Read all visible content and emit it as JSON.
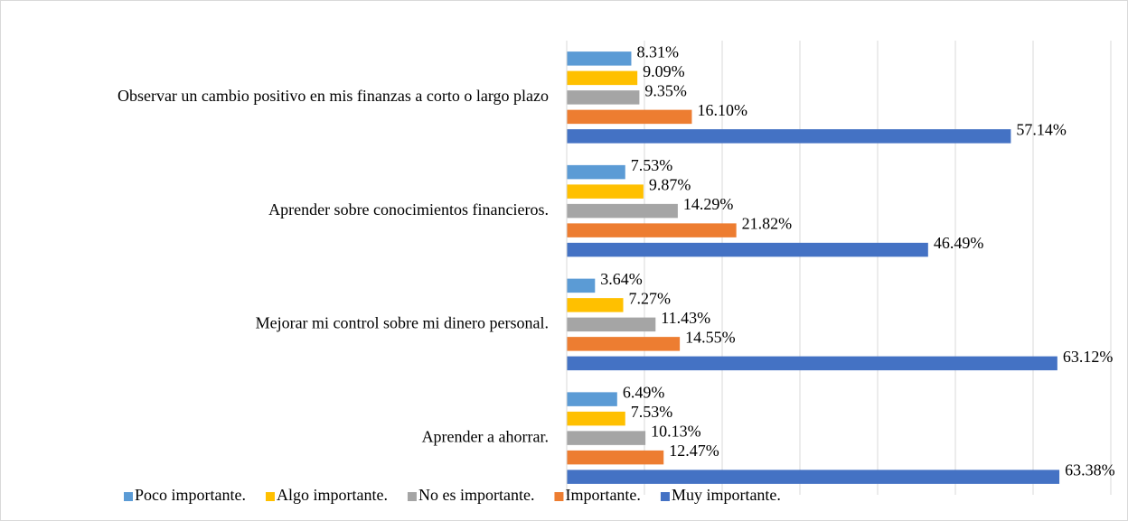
{
  "chart_data": {
    "type": "bar",
    "orientation": "horizontal",
    "categories": [
      "Observar un cambio positivo en mis finanzas a corto o largo plazo",
      "Aprender sobre conocimientos financieros.",
      "Mejorar mi control sobre mi dinero personal.",
      "Aprender a ahorrar."
    ],
    "series": [
      {
        "name": "Poco importante.",
        "color": "#5b9bd5",
        "values": [
          8.31,
          7.53,
          3.64,
          6.49
        ],
        "value_labels": [
          "8.31%",
          "7.53%",
          "3.64%",
          "6.49%"
        ]
      },
      {
        "name": "Algo importante.",
        "color": "#ffc000",
        "values": [
          9.09,
          9.87,
          7.27,
          7.53
        ],
        "value_labels": [
          "9.09%",
          "9.87%",
          "7.27%",
          "7.53%"
        ]
      },
      {
        "name": "No es importante.",
        "color": "#a5a5a5",
        "values": [
          9.35,
          14.29,
          11.43,
          10.13
        ],
        "value_labels": [
          "9.35%",
          "14.29%",
          "11.43%",
          "10.13%"
        ]
      },
      {
        "name": "Importante.",
        "color": "#ed7d31",
        "values": [
          16.1,
          21.82,
          14.55,
          12.47
        ],
        "value_labels": [
          "16.10%",
          "21.82%",
          "14.55%",
          "12.47%"
        ]
      },
      {
        "name": "Muy importante.",
        "color": "#4472c4",
        "values": [
          57.14,
          46.49,
          63.12,
          63.38
        ],
        "value_labels": [
          "57.14%",
          "46.49%",
          "63.12%",
          "63.38%"
        ]
      }
    ],
    "xlim": [
      0,
      70
    ],
    "xticks": [
      0,
      10,
      20,
      30,
      40,
      50,
      60,
      70
    ],
    "grid": true,
    "legend": "bottom"
  }
}
